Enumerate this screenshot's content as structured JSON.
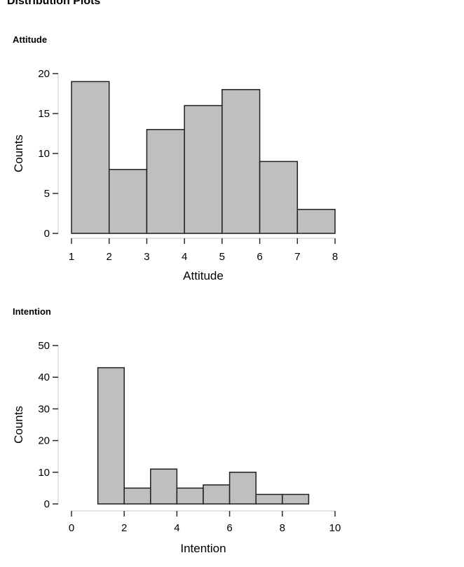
{
  "page": {
    "title": "Distribution Plots"
  },
  "sections": [
    {
      "header": "Attitude"
    },
    {
      "header": "Intention"
    }
  ],
  "chart_data": [
    {
      "type": "bar",
      "subtype": "histogram",
      "title": "Attitude",
      "xlabel": "Attitude",
      "ylabel": "Counts",
      "bin_edges": [
        1,
        2,
        3,
        4,
        5,
        6,
        7,
        8
      ],
      "values": [
        19,
        8,
        13,
        16,
        18,
        9,
        3
      ],
      "xlim": [
        1,
        8
      ],
      "ylim": [
        0,
        20
      ],
      "xticks": [
        1,
        2,
        3,
        4,
        5,
        6,
        7,
        8
      ],
      "yticks": [
        0,
        5,
        10,
        15,
        20
      ],
      "grid": false,
      "legend": "none"
    },
    {
      "type": "bar",
      "subtype": "histogram",
      "title": "Intention",
      "xlabel": "Intention",
      "ylabel": "Counts",
      "bin_edges": [
        1,
        2,
        3,
        4,
        5,
        6,
        7,
        8,
        9
      ],
      "values": [
        43,
        5,
        11,
        5,
        6,
        10,
        3,
        3
      ],
      "xlim": [
        0,
        10
      ],
      "ylim": [
        0,
        50
      ],
      "xticks": [
        0,
        2,
        4,
        6,
        8,
        10
      ],
      "yticks": [
        0,
        10,
        20,
        30,
        40,
        50
      ],
      "grid": false,
      "legend": "none"
    }
  ],
  "colors": {
    "bar_fill": "#bfbfbf",
    "bar_stroke": "#1f1f1f",
    "axis_line": "#d9d9d9",
    "tick_mark": "#2a2a2a",
    "text": "#000000"
  }
}
